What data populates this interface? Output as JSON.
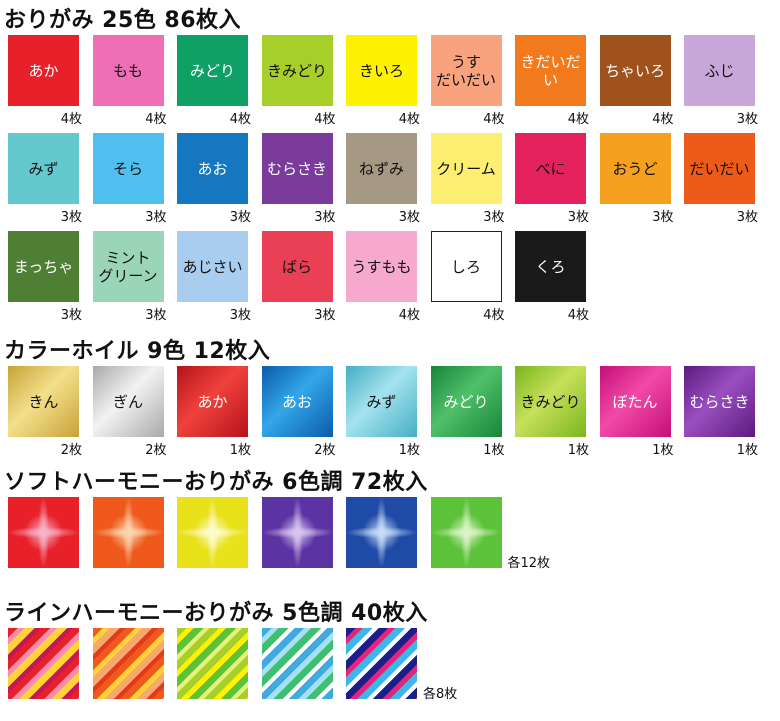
{
  "sections": [
    {
      "title": "おりがみ 25色 86枚入",
      "items": [
        {
          "label": "あか",
          "count": "4枚",
          "bg": "#e8202a",
          "fg": "#ffffff"
        },
        {
          "label": "もも",
          "count": "4枚",
          "bg": "#ef6fb6",
          "fg": "#111111"
        },
        {
          "label": "みどり",
          "count": "4枚",
          "bg": "#0fa065",
          "fg": "#ffffff"
        },
        {
          "label": "きみどり",
          "count": "4枚",
          "bg": "#a6cf2a",
          "fg": "#111111"
        },
        {
          "label": "きいろ",
          "count": "4枚",
          "bg": "#fff200",
          "fg": "#111111"
        },
        {
          "label": "うす\nだいだい",
          "count": "4枚",
          "bg": "#f8a27e",
          "fg": "#111111"
        },
        {
          "label": "きだいだい",
          "count": "4枚",
          "bg": "#f37a1c",
          "fg": "#ffffff"
        },
        {
          "label": "ちゃいろ",
          "count": "4枚",
          "bg": "#a0521d",
          "fg": "#ffffff"
        },
        {
          "label": "ふじ",
          "count": "3枚",
          "bg": "#c8a6d9",
          "fg": "#111111"
        },
        {
          "label": "みず",
          "count": "3枚",
          "bg": "#63c9cf",
          "fg": "#111111"
        },
        {
          "label": "そら",
          "count": "3枚",
          "bg": "#4fbff0",
          "fg": "#111111"
        },
        {
          "label": "あお",
          "count": "3枚",
          "bg": "#1577c0",
          "fg": "#ffffff"
        },
        {
          "label": "むらさき",
          "count": "3枚",
          "bg": "#7a3b9a",
          "fg": "#ffffff"
        },
        {
          "label": "ねずみ",
          "count": "3枚",
          "bg": "#a59984",
          "fg": "#111111"
        },
        {
          "label": "クリーム",
          "count": "3枚",
          "bg": "#fbee70",
          "fg": "#111111"
        },
        {
          "label": "べに",
          "count": "3枚",
          "bg": "#e6225e",
          "fg": "#111111"
        },
        {
          "label": "おうど",
          "count": "3枚",
          "bg": "#f5a01e",
          "fg": "#111111"
        },
        {
          "label": "だいだい",
          "count": "3枚",
          "bg": "#ee5a1a",
          "fg": "#111111"
        },
        {
          "label": "まっちゃ",
          "count": "3枚",
          "bg": "#4f7e35",
          "fg": "#ffffff"
        },
        {
          "label": "ミント\nグリーン",
          "count": "3枚",
          "bg": "#9bd5b8",
          "fg": "#111111"
        },
        {
          "label": "あじさい",
          "count": "3枚",
          "bg": "#a9cdee",
          "fg": "#111111"
        },
        {
          "label": "ばら",
          "count": "3枚",
          "bg": "#e94055",
          "fg": "#111111"
        },
        {
          "label": "うすもも",
          "count": "4枚",
          "bg": "#f6a8cf",
          "fg": "#111111"
        },
        {
          "label": "しろ",
          "count": "4枚",
          "bg": "#ffffff",
          "fg": "#111111",
          "border": "#222222"
        },
        {
          "label": "くろ",
          "count": "4枚",
          "bg": "#1a1a1a",
          "fg": "#ffffff"
        }
      ]
    },
    {
      "title": "カラーホイル 9色 12枚入",
      "items": [
        {
          "label": "きん",
          "count": "2枚",
          "bg": "#c7a239",
          "bg2": "#f3e08a",
          "fg": "#111111"
        },
        {
          "label": "ぎん",
          "count": "2枚",
          "bg": "#a9a9a9",
          "bg2": "#f2f2f2",
          "fg": "#111111"
        },
        {
          "label": "あか",
          "count": "1枚",
          "bg": "#b5121b",
          "bg2": "#f0423c",
          "fg": "#ffffff"
        },
        {
          "label": "あお",
          "count": "2枚",
          "bg": "#0a5cab",
          "bg2": "#34a6e8",
          "fg": "#ffffff"
        },
        {
          "label": "みず",
          "count": "1枚",
          "bg": "#45aec4",
          "bg2": "#a4e3ee",
          "fg": "#111111"
        },
        {
          "label": "みどり",
          "count": "1枚",
          "bg": "#17853a",
          "bg2": "#4fc06a",
          "fg": "#ffffff"
        },
        {
          "label": "きみどり",
          "count": "1枚",
          "bg": "#7ab51e",
          "bg2": "#c6e05a",
          "fg": "#111111"
        },
        {
          "label": "ぼたん",
          "count": "1枚",
          "bg": "#c40e78",
          "bg2": "#f24aa8",
          "fg": "#ffffff"
        },
        {
          "label": "むらさき",
          "count": "1枚",
          "bg": "#5b1b7e",
          "bg2": "#9a4fc0",
          "fg": "#ffffff"
        }
      ]
    },
    {
      "title": "ソフトハーモニーおりがみ 6色調 72枚入",
      "note": "各12枚",
      "items": [
        {
          "c1": "#e8202a",
          "c2": "#f7b4c8"
        },
        {
          "c1": "#ef5a1c",
          "c2": "#fcd5b0"
        },
        {
          "c1": "#e9e21a",
          "c2": "#fdfbd2"
        },
        {
          "c1": "#5c33a3",
          "c2": "#d8c4f0"
        },
        {
          "c1": "#1f4aa6",
          "c2": "#c6dcf8"
        },
        {
          "c1": "#5cc23a",
          "c2": "#dcf4c8"
        }
      ]
    },
    {
      "title": "ラインハーモニーおりがみ 5色調 40枚入",
      "note": "各8枚",
      "items": [
        {
          "stripes": [
            "#e8202a",
            "#f48fb1",
            "#ffd23a",
            "#c2185b"
          ]
        },
        {
          "stripes": [
            "#ef5a1c",
            "#ffd23a",
            "#f7a86c",
            "#e23a1c"
          ]
        },
        {
          "stripes": [
            "#a6cf2a",
            "#fff200",
            "#5cc23a",
            "#e6f07a"
          ]
        },
        {
          "stripes": [
            "#40a9e0",
            "#a6e2f5",
            "#3fbf6f",
            "#ffffff"
          ]
        },
        {
          "stripes": [
            "#1a1f8a",
            "#e6227a",
            "#3fb6e8",
            "#ffffff"
          ]
        }
      ]
    }
  ]
}
